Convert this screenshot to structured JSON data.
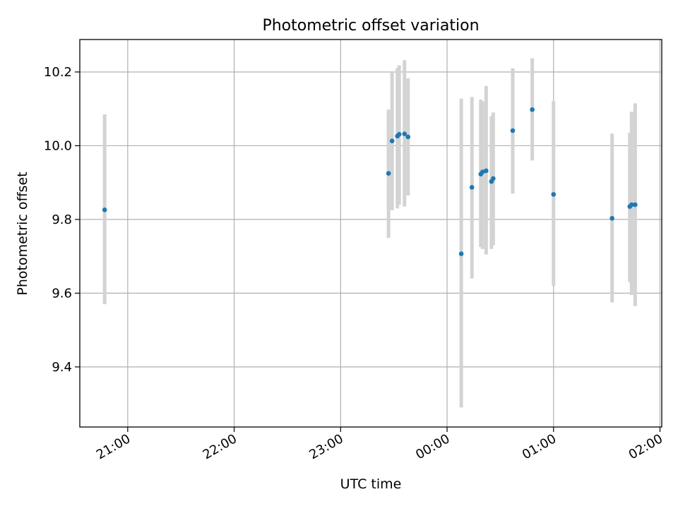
{
  "chart_data": {
    "type": "scatter",
    "title": "Photometric offset variation",
    "xlabel": "UTC time",
    "ylabel": "Photometric offset",
    "x_ticks": [
      "21:00",
      "22:00",
      "23:00",
      "00:00",
      "01:00",
      "02:00"
    ],
    "y_ticks": [
      "9.4",
      "9.6",
      "9.8",
      "10.0",
      "10.2"
    ],
    "y_tick_values": [
      9.4,
      9.6,
      9.8,
      10.0,
      10.2
    ],
    "xlim": [
      "20:33",
      "02:01"
    ],
    "ylim": [
      9.237,
      10.288
    ],
    "grid": true,
    "series": [
      {
        "x": [
          "20:47",
          "23:27",
          "23:29",
          "23:32",
          "23:33",
          "23:36",
          "23:38",
          "00:08",
          "00:14",
          "00:19",
          "00:20",
          "00:22",
          "00:25",
          "00:26",
          "00:37",
          "00:48",
          "01:00",
          "01:33",
          "01:43",
          "01:44",
          "01:46"
        ],
        "y": [
          9.826,
          9.925,
          10.013,
          10.026,
          10.031,
          10.032,
          10.024,
          9.707,
          9.887,
          9.923,
          9.929,
          9.932,
          9.903,
          9.911,
          10.041,
          10.098,
          9.868,
          9.803,
          9.835,
          9.84,
          9.84
        ],
        "err_low": [
          9.57,
          9.75,
          9.825,
          9.83,
          9.84,
          9.835,
          9.865,
          9.29,
          9.64,
          9.725,
          9.72,
          9.705,
          9.72,
          9.73,
          9.87,
          9.96,
          9.62,
          9.575,
          9.63,
          9.595,
          9.565
        ],
        "err_high": [
          10.085,
          10.098,
          10.2,
          10.21,
          10.218,
          10.232,
          10.183,
          10.128,
          10.132,
          10.125,
          10.12,
          10.162,
          10.08,
          10.09,
          10.21,
          10.237,
          10.12,
          10.033,
          10.035,
          10.092,
          10.115
        ]
      }
    ],
    "colors": {
      "point": "#1f77b4",
      "errorbar": "#d3d3d3",
      "grid": "#b0b0b0"
    }
  }
}
